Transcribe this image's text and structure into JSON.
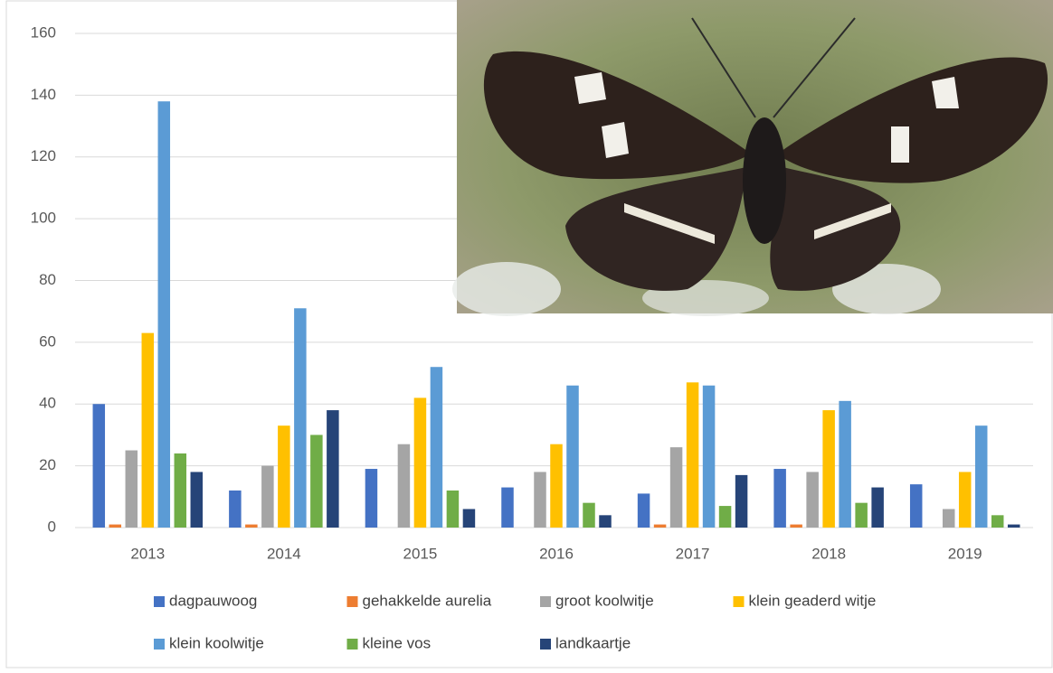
{
  "chart_data": {
    "type": "bar",
    "categories": [
      "2013",
      "2014",
      "2015",
      "2016",
      "2017",
      "2018",
      "2019"
    ],
    "series": [
      {
        "name": "dagpauwoog",
        "color": "#4472c4",
        "values": [
          40,
          12,
          19,
          13,
          11,
          19,
          14
        ]
      },
      {
        "name": "gehakkelde aurelia",
        "color": "#ed7d31",
        "values": [
          1,
          1,
          0,
          0,
          1,
          1,
          0
        ]
      },
      {
        "name": "groot koolwitje",
        "color": "#a5a5a5",
        "values": [
          25,
          20,
          27,
          18,
          26,
          18,
          6
        ]
      },
      {
        "name": "klein geaderd witje",
        "color": "#ffc000",
        "values": [
          63,
          33,
          42,
          27,
          47,
          38,
          18
        ]
      },
      {
        "name": "klein koolwitje",
        "color": "#5b9bd5",
        "values": [
          138,
          71,
          52,
          46,
          46,
          41,
          33
        ]
      },
      {
        "name": "kleine vos",
        "color": "#70ad47",
        "values": [
          24,
          30,
          12,
          8,
          7,
          8,
          4
        ]
      },
      {
        "name": "landkaartje",
        "color": "#264478",
        "values": [
          18,
          38,
          6,
          4,
          17,
          13,
          1
        ]
      }
    ],
    "ylim": [
      0,
      160
    ],
    "yticks": [
      0,
      20,
      40,
      60,
      80,
      100,
      120,
      140,
      160
    ],
    "grid": true,
    "legend": "bottom"
  }
}
